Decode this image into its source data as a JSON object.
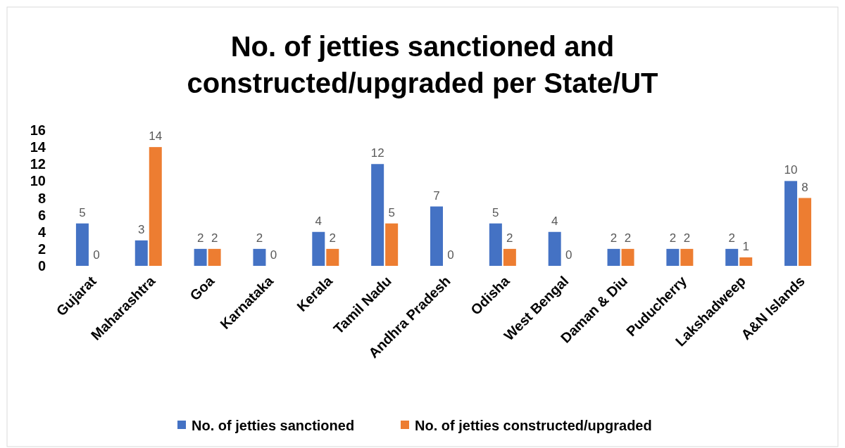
{
  "chart_data": {
    "type": "bar",
    "title": "No. of jetties sanctioned and constructed/upgraded per State/UT",
    "categories": [
      "Gujarat",
      "Maharashtra",
      "Goa",
      "Karnataka",
      "Kerala",
      "Tamil Nadu",
      "Andhra Pradesh",
      "Odisha",
      "West Bengal",
      "Daman & Diu",
      "Puducherry",
      "Lakshadweep",
      "A&N Islands"
    ],
    "series": [
      {
        "name": "No. of jetties sanctioned",
        "color": "#4472c4",
        "values": [
          5,
          3,
          2,
          2,
          4,
          12,
          7,
          5,
          4,
          2,
          2,
          2,
          10
        ]
      },
      {
        "name": "No. of jetties constructed/upgraded",
        "color": "#ed7d31",
        "values": [
          0,
          14,
          2,
          0,
          2,
          5,
          0,
          2,
          0,
          2,
          2,
          1,
          8
        ]
      }
    ],
    "ylim": [
      0,
      16
    ],
    "yticks": [
      0,
      2,
      4,
      6,
      8,
      10,
      12,
      14,
      16
    ],
    "grid": false,
    "legend": "bottom",
    "data_labels": true
  }
}
